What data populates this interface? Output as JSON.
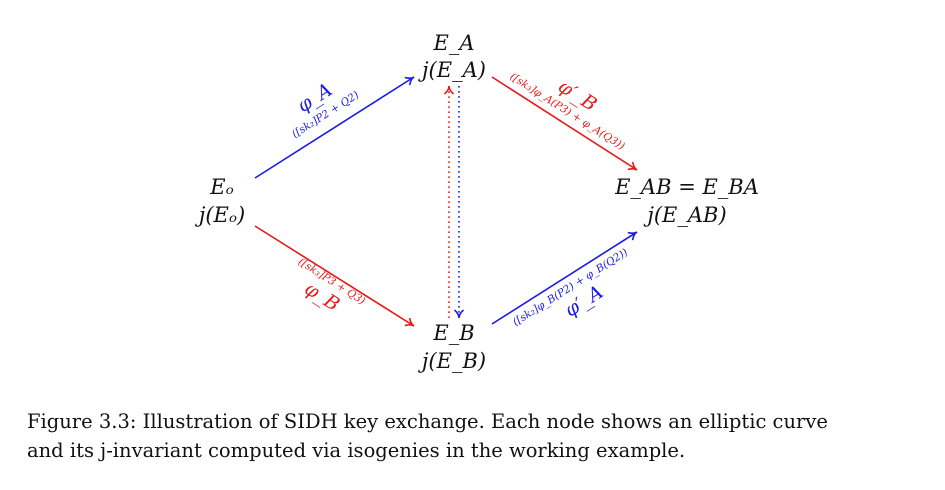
{
  "nodes": {
    "eo": {
      "curve": "Eₒ",
      "jinv": "j(Eₒ)"
    },
    "ea": {
      "curve": "E_A",
      "jinv": "j(E_A)"
    },
    "eb": {
      "curve": "E_B",
      "jinv": "j(E_B)"
    },
    "eab": {
      "curve": "E_AB = E_BA",
      "jinv": "j(E_AB)"
    }
  },
  "edges": {
    "phi_a": {
      "name": "φ_A",
      "kernel": "([sk₂]P2 + Q2)",
      "color": "#1a1ae6"
    },
    "phi_b": {
      "name": "φ_B",
      "kernel": "([sk₃]P3 + Q3)",
      "color": "#e61a1a"
    },
    "phi_b_prime": {
      "name": "φ′_B",
      "kernel": "([sk₃]φ_A(P3) + φ_A(Q3))",
      "color": "#e61a1a"
    },
    "phi_a_prime": {
      "name": "φ′_A",
      "kernel": "([sk₂]φ_B(P2) + φ_B(Q2))",
      "color": "#1a1ae6"
    }
  },
  "caption": {
    "line1": "Figure 3.3: Illustration of SIDH key exchange. Each node shows an elliptic curve",
    "line2": "and its j-invariant computed via isogenies in the working example."
  }
}
